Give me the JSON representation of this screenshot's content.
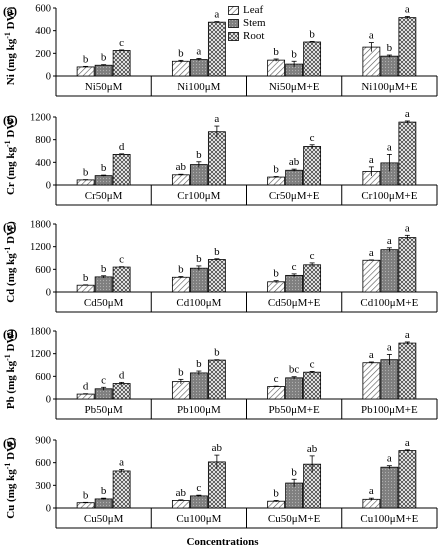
{
  "colors": {
    "leaf_hatch": "#555555",
    "stem_fill": "#7a7a7a",
    "root_hatch": "#444444",
    "axis": "#000000"
  },
  "legend": {
    "items": [
      {
        "name": "Leaf",
        "pattern": "diagonal"
      },
      {
        "name": "Stem",
        "pattern": "dotted-gray"
      },
      {
        "name": "Root",
        "pattern": "crosshatch"
      }
    ]
  },
  "xlabel": "Concentrations",
  "chart_data": [
    {
      "type": "bar",
      "panel": "(a)",
      "ylabel_parts": [
        "Ni (mg kg",
        "-1",
        " DW)"
      ],
      "ylim": [
        0,
        600
      ],
      "yticks": [
        "0",
        "200",
        "400",
        "600"
      ],
      "categories": [
        "Ni50μM",
        "Ni100μM",
        "Ni50μM+E",
        "Ni100μM+E"
      ],
      "series": [
        {
          "name": "Leaf",
          "values": [
            80,
            130,
            140,
            255
          ],
          "errors": [
            5,
            8,
            10,
            40
          ],
          "letters": [
            "b",
            "b",
            "b",
            "a"
          ]
        },
        {
          "name": "Stem",
          "values": [
            95,
            145,
            105,
            175
          ],
          "errors": [
            5,
            10,
            25,
            10
          ],
          "letters": [
            "b",
            "a",
            "b",
            "b"
          ]
        },
        {
          "name": "Root",
          "values": [
            225,
            475,
            300,
            515
          ],
          "errors": [
            5,
            5,
            5,
            10
          ],
          "letters": [
            "c",
            "a",
            "b",
            "a"
          ]
        }
      ]
    },
    {
      "type": "bar",
      "panel": "(b)",
      "ylabel_parts": [
        "Cr (mg kg",
        "-1",
        " DW)"
      ],
      "ylim": [
        0,
        1200
      ],
      "yticks": [
        "0",
        "400",
        "800",
        "1200"
      ],
      "categories": [
        "Cr50μM",
        "Cr100μM",
        "Cr50μM+E",
        "Cr100μM+E"
      ],
      "series": [
        {
          "name": "Leaf",
          "values": [
            90,
            180,
            140,
            240
          ],
          "errors": [
            5,
            10,
            10,
            80
          ],
          "letters": [
            "b",
            "ab",
            "b",
            "a"
          ]
        },
        {
          "name": "Stem",
          "values": [
            165,
            360,
            260,
            390
          ],
          "errors": [
            10,
            50,
            20,
            150
          ],
          "letters": [
            "b",
            "b",
            "ab",
            "a"
          ]
        },
        {
          "name": "Root",
          "values": [
            540,
            940,
            680,
            1110
          ],
          "errors": [
            10,
            100,
            30,
            20
          ],
          "letters": [
            "d",
            "a",
            "c",
            "a"
          ]
        }
      ]
    },
    {
      "type": "bar",
      "panel": "(c)",
      "ylabel_parts": [
        "Cd (mg kg",
        "-1",
        " DW)"
      ],
      "ylim": [
        0,
        1800
      ],
      "yticks": [
        "0",
        "600",
        "1200",
        "1800"
      ],
      "categories": [
        "Cd50μM",
        "Cd100μM",
        "Cd50μM+E",
        "Cd100μM+E"
      ],
      "series": [
        {
          "name": "Leaf",
          "values": [
            180,
            390,
            270,
            840
          ],
          "errors": [
            10,
            20,
            30,
            10
          ],
          "letters": [
            "b",
            "b",
            "b",
            "a"
          ]
        },
        {
          "name": "Stem",
          "values": [
            400,
            630,
            440,
            1120
          ],
          "errors": [
            30,
            60,
            40,
            50
          ],
          "letters": [
            "b",
            "b",
            "c",
            "a"
          ]
        },
        {
          "name": "Root",
          "values": [
            660,
            860,
            720,
            1440
          ],
          "errors": [
            10,
            20,
            50,
            60
          ],
          "letters": [
            "c",
            "b",
            "c",
            "a"
          ]
        }
      ]
    },
    {
      "type": "bar",
      "panel": "(d)",
      "ylabel_parts": [
        "Pb (mg kg",
        "-1",
        " DW)"
      ],
      "ylim": [
        0,
        1800
      ],
      "yticks": [
        "0",
        "600",
        "1200",
        "1800"
      ],
      "categories": [
        "Pb50μM",
        "Pb100μM",
        "Pb50μM+E",
        "Pb100μM+E"
      ],
      "series": [
        {
          "name": "Leaf",
          "values": [
            130,
            460,
            330,
            960
          ],
          "errors": [
            10,
            60,
            10,
            20
          ],
          "letters": [
            "d",
            "b",
            "c",
            "a"
          ]
        },
        {
          "name": "Stem",
          "values": [
            270,
            690,
            560,
            1040
          ],
          "errors": [
            40,
            50,
            30,
            140
          ],
          "letters": [
            "c",
            "b",
            "bc",
            "a"
          ]
        },
        {
          "name": "Root",
          "values": [
            410,
            1030,
            710,
            1480
          ],
          "errors": [
            30,
            10,
            20,
            30
          ],
          "letters": [
            "d",
            "b",
            "c",
            "a"
          ]
        }
      ]
    },
    {
      "type": "bar",
      "panel": "(e)",
      "ylabel_parts": [
        "Cu (mg kg",
        "-1",
        " DW)"
      ],
      "ylim": [
        0,
        900
      ],
      "yticks": [
        "0",
        "300",
        "600",
        "900"
      ],
      "categories": [
        "Cu50μM",
        "Cu100μM",
        "Cu50μM+E",
        "Cu100μM+E"
      ],
      "series": [
        {
          "name": "Leaf",
          "values": [
            70,
            100,
            90,
            115
          ],
          "errors": [
            5,
            8,
            10,
            15
          ],
          "letters": [
            "b",
            "ab",
            "b",
            "a"
          ]
        },
        {
          "name": "Stem",
          "values": [
            120,
            160,
            330,
            540
          ],
          "errors": [
            10,
            10,
            50,
            20
          ],
          "letters": [
            "b",
            "c",
            "b",
            "a"
          ]
        },
        {
          "name": "Root",
          "values": [
            490,
            610,
            580,
            760
          ],
          "errors": [
            20,
            90,
            110,
            10
          ],
          "letters": [
            "a",
            "ab",
            "ab",
            "a"
          ]
        }
      ]
    }
  ]
}
